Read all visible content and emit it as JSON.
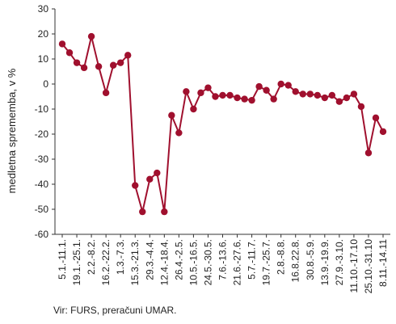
{
  "chart_data": {
    "type": "line",
    "ylabel": "medletna sprememba, v %",
    "ylim": [
      -60,
      30
    ],
    "yticks": [
      30,
      20,
      10,
      0,
      -10,
      -20,
      -30,
      -40,
      -50,
      -60
    ],
    "xtick_labels": [
      "5.1.-11.1.",
      "19.1.-25.1.",
      "2.2.-8.2.",
      "16.2.-22.2.",
      "1.3.-7.3.",
      "15.3.-21.3.",
      "29.3.-4.4.",
      "12.4.-18.4.",
      "26.4.-2.5.",
      "10.5.-16.5.",
      "24.5.-30.5.",
      "7.6.-13.6.",
      "21.6.-27.6.",
      "5.7.-11.7.",
      "19.7.-25.7.",
      "2.8.-8.8.",
      "16.8.22.8.",
      "30.8.-5.9.",
      "13.9.-19.9.",
      "27.9.-3.10.",
      "11.10.-17.10",
      "25.10.-31.10",
      "8.11.-14.11"
    ],
    "grid": false,
    "legend": "none",
    "series": [
      {
        "color": "#a0102e",
        "values": [
          16,
          12.5,
          8.5,
          6.5,
          19,
          7,
          -3.5,
          7.5,
          8.5,
          11.5,
          -40.5,
          -51,
          -38,
          -35.5,
          -51,
          -12.5,
          -19.5,
          -3,
          -10,
          -3.5,
          -1.5,
          -5,
          -4.5,
          -4.5,
          -5.5,
          -6,
          -6.5,
          -1,
          -2.5,
          -6,
          0,
          -0.5,
          -3,
          -4,
          -4,
          -4.5,
          -5.5,
          -4.5,
          -7,
          -5.5,
          -4,
          -9,
          -27.5,
          -13.5,
          -19
        ]
      }
    ]
  },
  "footer": {
    "source": "Vir: FURS, preračuni UMAR."
  }
}
